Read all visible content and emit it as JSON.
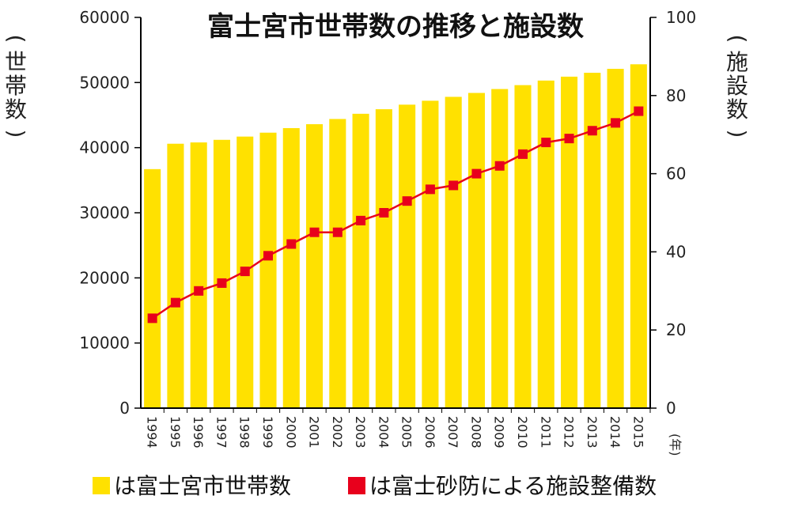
{
  "chart_data": {
    "type": "bar",
    "title": "富士宮市世帯数の推移と施設数",
    "categories": [
      "1994",
      "1995",
      "1996",
      "1997",
      "1998",
      "1999",
      "2000",
      "2001",
      "2002",
      "2003",
      "2004",
      "2005",
      "2006",
      "2007",
      "2008",
      "2009",
      "2010",
      "2011",
      "2012",
      "2013",
      "2014",
      "2015"
    ],
    "x_unit_label": "(年)",
    "left_axis": {
      "label": "(世帯数)",
      "ylim": [
        0,
        60000
      ],
      "ticks": [
        "0",
        "10000",
        "20000",
        "30000",
        "40000",
        "50000",
        "60000"
      ]
    },
    "right_axis": {
      "label": "(施設数)",
      "ylim": [
        0,
        100
      ],
      "ticks": [
        "0",
        "20",
        "40",
        "60",
        "80",
        "100"
      ]
    },
    "series": [
      {
        "name": "は富士宮市世帯数",
        "chart_type": "bar",
        "axis": "left",
        "color": "#FFE100",
        "values": [
          36700,
          40600,
          40800,
          41200,
          41700,
          42300,
          43000,
          43600,
          44400,
          45200,
          45900,
          46600,
          47200,
          47800,
          48400,
          49000,
          49600,
          50300,
          50900,
          51500,
          52100,
          52800
        ]
      },
      {
        "name": "は富士砂防による施設整備数",
        "chart_type": "line",
        "axis": "right",
        "color": "#E8001C",
        "values": [
          23,
          27,
          30,
          32,
          35,
          39,
          42,
          45,
          45,
          48,
          50,
          53,
          56,
          57,
          60,
          62,
          65,
          68,
          69,
          71,
          73,
          76
        ]
      }
    ]
  }
}
